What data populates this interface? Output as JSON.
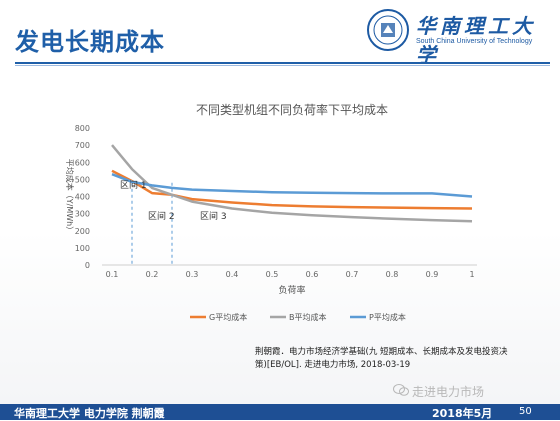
{
  "slide": {
    "title": "发电长期成本",
    "university_cn": "华南理工大学",
    "university_en": "South China University of Technology"
  },
  "citation": "荆朝霞．电力市场经济学基础(九 短期成本、长期成本及发电投资决策)[EB/OL]. 走进电力市场, 2018-03-19",
  "watermark": "走进电力市场",
  "footer": {
    "left": "华南理工大学 电力学院  荆朝霞",
    "date": "2018年5月",
    "page": "50",
    "accent_color": "#1e4f94"
  },
  "chart_data": {
    "type": "line",
    "title": "不同类型机组不同负荷率下平均成本",
    "xlabel": "负荷率",
    "ylabel": "平均成本（Y/MWh）",
    "x": [
      0.1,
      0.2,
      0.3,
      0.4,
      0.5,
      0.6,
      0.7,
      0.8,
      0.9,
      1.0
    ],
    "x_ticks": [
      "0.1",
      "0.2",
      "0.3",
      "0.4",
      "0.5",
      "0.6",
      "0.7",
      "0.8",
      "0.9",
      "1"
    ],
    "ylim": [
      0,
      800
    ],
    "y_ticks": [
      0,
      100,
      200,
      300,
      400,
      500,
      600,
      700,
      800
    ],
    "grid": false,
    "legend_position": "bottom",
    "series": [
      {
        "name": "G平均成本",
        "color": "#ed7d31",
        "x": [
          0.1,
          0.15,
          0.2,
          0.25,
          0.3,
          0.4,
          0.5,
          0.6,
          0.7,
          0.8,
          0.9,
          1.0
        ],
        "values": [
          550,
          490,
          420,
          410,
          385,
          365,
          350,
          342,
          338,
          335,
          332,
          330
        ]
      },
      {
        "name": "B平均成本",
        "color": "#a5a5a5",
        "x": [
          0.1,
          0.15,
          0.2,
          0.25,
          0.3,
          0.4,
          0.5,
          0.6,
          0.7,
          0.8,
          0.9,
          1.0
        ],
        "values": [
          700,
          560,
          450,
          410,
          370,
          330,
          305,
          290,
          280,
          270,
          262,
          255
        ]
      },
      {
        "name": "P平均成本",
        "color": "#5b9bd5",
        "x": [
          0.1,
          0.15,
          0.2,
          0.25,
          0.3,
          0.4,
          0.5,
          0.6,
          0.7,
          0.8,
          0.9,
          1.0
        ],
        "values": [
          530,
          485,
          465,
          450,
          440,
          432,
          425,
          422,
          420,
          418,
          418,
          400
        ]
      }
    ],
    "regions": [
      {
        "label": "区间 1",
        "x": 0.12,
        "y": 450
      },
      {
        "label": "区间 2",
        "x": 0.19,
        "y": 270
      },
      {
        "label": "区间 3",
        "x": 0.32,
        "y": 270
      }
    ],
    "dividers": [
      0.15,
      0.25
    ]
  }
}
